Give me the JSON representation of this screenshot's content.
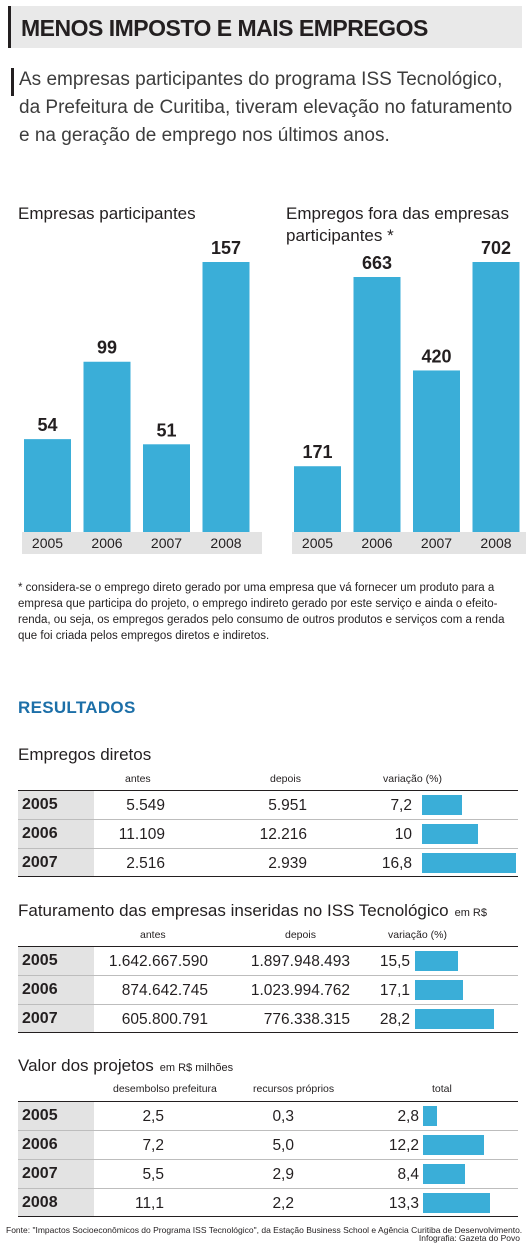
{
  "header": {
    "title": "MENOS IMPOSTO E MAIS EMPREGOS"
  },
  "intro": "As empresas participantes do programa ISS Tecnológico, da Prefeitura de Curitiba, tiveram elevação no faturamento e na geração de emprego nos últimos anos.",
  "colors": {
    "bar": "#3aaed8",
    "axis_band": "#e3e3e3",
    "section": "#1c6fa8",
    "text": "#231f20"
  },
  "chart_data": [
    {
      "type": "bar",
      "title": "Empresas participantes",
      "categories": [
        "2005",
        "2006",
        "2007",
        "2008"
      ],
      "values": [
        54,
        99,
        51,
        157
      ],
      "value_labels": [
        "54",
        "99",
        "51",
        "157"
      ]
    },
    {
      "type": "bar",
      "title": "Empregos fora das empresas participantes *",
      "categories": [
        "2005",
        "2006",
        "2007",
        "2008"
      ],
      "values": [
        171,
        663,
        420,
        702
      ],
      "value_labels": [
        "171",
        "663",
        "420",
        "702"
      ]
    },
    {
      "type": "table",
      "title": "Empregos diretos",
      "columns": [
        "antes",
        "depois",
        "variação (%)"
      ],
      "rows": [
        {
          "year": "2005",
          "antes": "5.549",
          "depois": "5.951",
          "var": "7,2",
          "var_value": 7.2
        },
        {
          "year": "2006",
          "antes": "11.109",
          "depois": "12.216",
          "var": "10",
          "var_value": 10
        },
        {
          "year": "2007",
          "antes": "2.516",
          "depois": "2.939",
          "var": "16,8",
          "var_value": 16.8
        }
      ]
    },
    {
      "type": "table",
      "title": "Faturamento das empresas inseridas no ISS Tecnológico",
      "unit": "em R$",
      "columns": [
        "antes",
        "depois",
        "variação (%)"
      ],
      "rows": [
        {
          "year": "2005",
          "antes": "1.642.667.590",
          "depois": "1.897.948.493",
          "var": "15,5",
          "var_value": 15.5
        },
        {
          "year": "2006",
          "antes": "874.642.745",
          "depois": "1.023.994.762",
          "var": "17,1",
          "var_value": 17.1
        },
        {
          "year": "2007",
          "antes": "605.800.791",
          "depois": "776.338.315",
          "var": "28,2",
          "var_value": 28.2
        }
      ]
    },
    {
      "type": "table",
      "title": "Valor dos projetos",
      "unit": "em R$ milhões",
      "columns": [
        "desembolso prefeitura",
        "recursos próprios",
        "total"
      ],
      "rows": [
        {
          "year": "2005",
          "antes": "2,5",
          "depois": "0,3",
          "var": "2,8",
          "var_value": 2.8
        },
        {
          "year": "2006",
          "antes": "7,2",
          "depois": "5,0",
          "var": "12,2",
          "var_value": 12.2
        },
        {
          "year": "2007",
          "antes": "5,5",
          "depois": "2,9",
          "var": "8,4",
          "var_value": 8.4
        },
        {
          "year": "2008",
          "antes": "11,1",
          "depois": "2,2",
          "var": "13,3",
          "var_value": 13.3
        }
      ]
    }
  ],
  "footnote": "* considera-se o emprego direto gerado por uma empresa que vá fornecer um produto para a empresa que participa do projeto, o emprego indireto gerado por este serviço e ainda o efeito-renda, ou seja, os empregos gerados pelo consumo de outros produtos e serviços com a renda que foi criada pelos empregos diretos e indiretos.",
  "section_title": "RESULTADOS",
  "source": "Fonte: \"Impactos Socioeconômicos do Programa ISS Tecnológico\", da Estação Business School e Agência Curitiba de Desenvolvimento.",
  "credit": "Infografia: Gazeta do Povo"
}
